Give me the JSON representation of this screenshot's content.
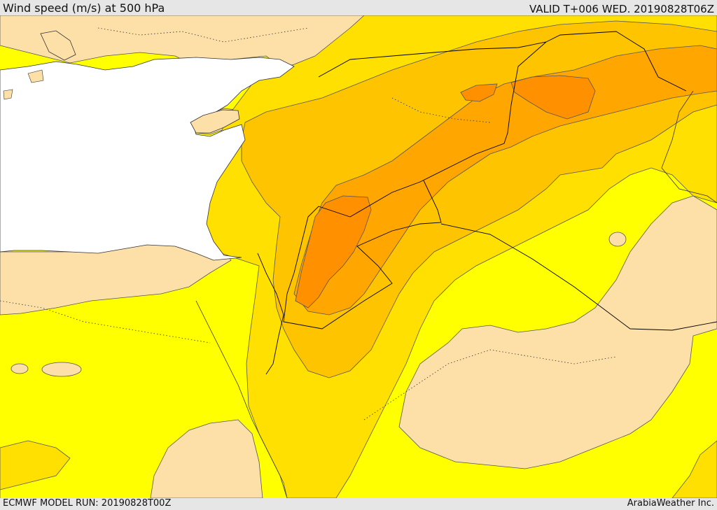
{
  "header": {
    "title": "Wind speed (m/s) at 500 hPa",
    "valid": "VALID T+006 WED. 20190828T06Z"
  },
  "footer": {
    "model_run": "ECMWF MODEL RUN: 20190828T00Z",
    "credit": "ArabiaWeather Inc."
  },
  "colors": {
    "sea": "#ffffff",
    "lightest": "#fde0a8",
    "yellow": "#ffff00",
    "gold": "#ffe000",
    "amber": "#ffc400",
    "orange": "#ffa600",
    "deep-orange": "#ff9000",
    "contour": "#555555",
    "border": "#000000"
  }
}
